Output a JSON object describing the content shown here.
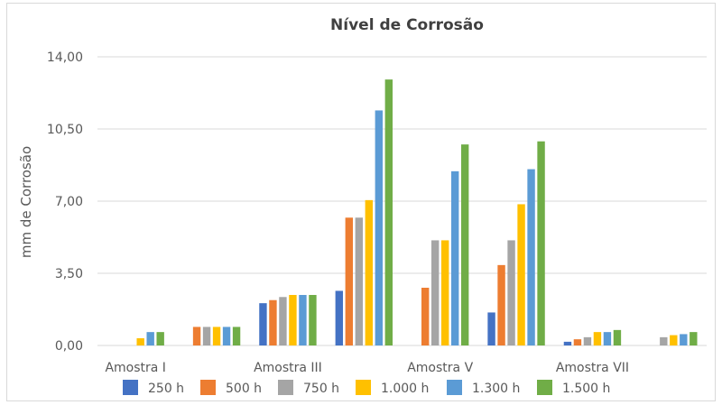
{
  "chart_data": {
    "type": "bar",
    "title": "Nível de Corrosão",
    "xlabel": "",
    "ylabel": "mm de Corrosão",
    "ylim": [
      0,
      14
    ],
    "yticks": [
      "0,00",
      "3,50",
      "7,00",
      "10,50",
      "14,00"
    ],
    "ytick_values": [
      0,
      3.5,
      7,
      10.5,
      14
    ],
    "grid": true,
    "legend_position": "bottom",
    "categories": [
      "Amostra I",
      "",
      "Amostra III",
      "",
      "Amostra V",
      "",
      "Amostra VII",
      ""
    ],
    "series": [
      {
        "name": "250 h",
        "color": "#4472c4",
        "values": [
          0,
          0,
          2.05,
          2.65,
          0,
          1.6,
          0.18,
          0
        ]
      },
      {
        "name": "500 h",
        "color": "#ed7d31",
        "values": [
          0,
          0.9,
          2.2,
          6.2,
          2.8,
          3.9,
          0.3,
          0
        ]
      },
      {
        "name": "750 h",
        "color": "#a5a5a5",
        "values": [
          0,
          0.9,
          2.35,
          6.2,
          5.1,
          5.1,
          0.4,
          0.4
        ]
      },
      {
        "name": "1.000 h",
        "color": "#ffc000",
        "values": [
          0.35,
          0.9,
          2.45,
          7.05,
          5.1,
          6.85,
          0.65,
          0.5
        ]
      },
      {
        "name": "1.300 h",
        "color": "#5b9bd5",
        "values": [
          0.65,
          0.9,
          2.45,
          11.4,
          8.45,
          8.55,
          0.65,
          0.55
        ]
      },
      {
        "name": "1.500 h",
        "color": "#70ad47",
        "values": [
          0.65,
          0.9,
          2.45,
          12.9,
          9.75,
          9.9,
          0.75,
          0.65
        ]
      }
    ]
  }
}
